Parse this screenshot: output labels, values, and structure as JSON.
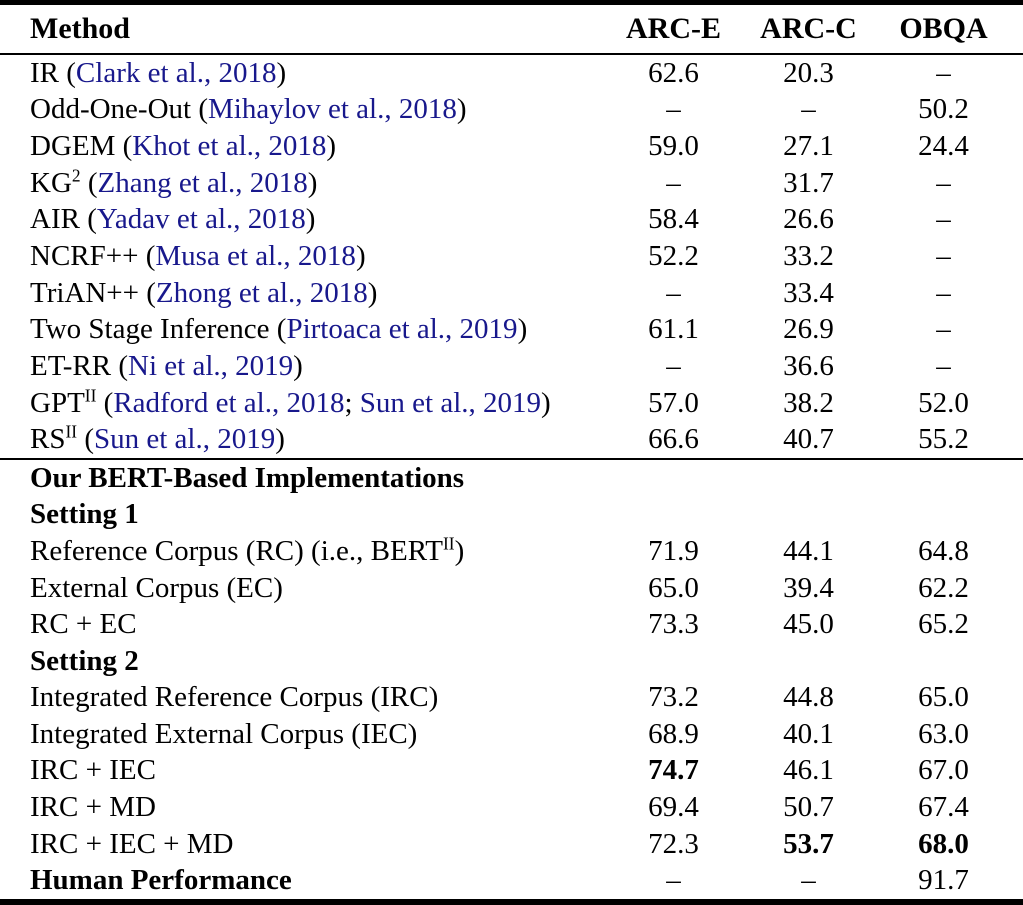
{
  "colors": {
    "background": "#FFFFFF",
    "text": "#000000",
    "rule": "#000000",
    "citation_link": "#18188C"
  },
  "table": {
    "columns": [
      "Method",
      "ARC-E",
      "ARC-C",
      "OBQA"
    ],
    "missing_value_glyph": "–",
    "sections": [
      {
        "rows": [
          {
            "method": [
              {
                "t": "IR ("
              },
              {
                "t": "Clark et al., 2018",
                "cite": true
              },
              {
                "t": ")"
              }
            ],
            "values": [
              "62.6",
              "20.3",
              "–"
            ],
            "bold": []
          },
          {
            "method": [
              {
                "t": "Odd-One-Out ("
              },
              {
                "t": "Mihaylov et al., 2018",
                "cite": true
              },
              {
                "t": ")"
              }
            ],
            "values": [
              "–",
              "–",
              "50.2"
            ],
            "bold": []
          },
          {
            "method": [
              {
                "t": "DGEM ("
              },
              {
                "t": "Khot et al., 2018",
                "cite": true
              },
              {
                "t": ")"
              }
            ],
            "values": [
              "59.0",
              "27.1",
              "24.4"
            ],
            "bold": []
          },
          {
            "method": [
              {
                "t": "KG"
              },
              {
                "t": "2",
                "sup": true
              },
              {
                "t": " ("
              },
              {
                "t": "Zhang et al., 2018",
                "cite": true
              },
              {
                "t": ")"
              }
            ],
            "values": [
              "–",
              "31.7",
              "–"
            ],
            "bold": []
          },
          {
            "method": [
              {
                "t": "AIR ("
              },
              {
                "t": "Yadav et al., 2018",
                "cite": true
              },
              {
                "t": ")"
              }
            ],
            "values": [
              "58.4",
              "26.6",
              "–"
            ],
            "bold": []
          },
          {
            "method": [
              {
                "t": "NCRF++ ("
              },
              {
                "t": "Musa et al., 2018",
                "cite": true
              },
              {
                "t": ")"
              }
            ],
            "values": [
              "52.2",
              "33.2",
              "–"
            ],
            "bold": []
          },
          {
            "method": [
              {
                "t": "TriAN++ ("
              },
              {
                "t": "Zhong et al., 2018",
                "cite": true
              },
              {
                "t": ")"
              }
            ],
            "values": [
              "–",
              "33.4",
              "–"
            ],
            "bold": []
          },
          {
            "method": [
              {
                "t": "Two Stage Inference ("
              },
              {
                "t": "Pirtoaca et al., 2019",
                "cite": true
              },
              {
                "t": ")"
              }
            ],
            "values": [
              "61.1",
              "26.9",
              "–"
            ],
            "bold": []
          },
          {
            "method": [
              {
                "t": "ET-RR ("
              },
              {
                "t": "Ni et al., 2019",
                "cite": true
              },
              {
                "t": ")"
              }
            ],
            "values": [
              "–",
              "36.6",
              "–"
            ],
            "bold": []
          },
          {
            "method": [
              {
                "t": "GPT"
              },
              {
                "t": "II",
                "sup": true
              },
              {
                "t": " ("
              },
              {
                "t": "Radford et al., 2018",
                "cite": true
              },
              {
                "t": "; "
              },
              {
                "t": "Sun et al., 2019",
                "cite": true
              },
              {
                "t": ")"
              }
            ],
            "values": [
              "57.0",
              "38.2",
              "52.0"
            ],
            "bold": []
          },
          {
            "method": [
              {
                "t": "RS"
              },
              {
                "t": "II",
                "sup": true
              },
              {
                "t": " ("
              },
              {
                "t": "Sun et al., 2019",
                "cite": true
              },
              {
                "t": ")"
              }
            ],
            "values": [
              "66.6",
              "40.7",
              "55.2"
            ],
            "bold": []
          }
        ]
      },
      {
        "rows": [
          {
            "method": [
              {
                "t": "Our BERT-Based Implementations"
              }
            ],
            "row_bold": true,
            "values": [
              "",
              "",
              ""
            ],
            "bold": []
          },
          {
            "method": [
              {
                "t": "Setting 1"
              }
            ],
            "row_bold": true,
            "values": [
              "",
              "",
              ""
            ],
            "bold": []
          },
          {
            "method": [
              {
                "t": "Reference Corpus (RC) (i.e., BERT"
              },
              {
                "t": "II",
                "sup": true
              },
              {
                "t": ")"
              }
            ],
            "values": [
              "71.9",
              "44.1",
              "64.8"
            ],
            "bold": []
          },
          {
            "method": [
              {
                "t": "External Corpus (EC)"
              }
            ],
            "values": [
              "65.0",
              "39.4",
              "62.2"
            ],
            "bold": []
          },
          {
            "method": [
              {
                "t": "RC + EC"
              }
            ],
            "values": [
              "73.3",
              "45.0",
              "65.2"
            ],
            "bold": []
          },
          {
            "method": [
              {
                "t": "Setting 2"
              }
            ],
            "row_bold": true,
            "values": [
              "",
              "",
              ""
            ],
            "bold": []
          },
          {
            "method": [
              {
                "t": "Integrated Reference Corpus (IRC)"
              }
            ],
            "values": [
              "73.2",
              "44.8",
              "65.0"
            ],
            "bold": []
          },
          {
            "method": [
              {
                "t": "Integrated External Corpus (IEC)"
              }
            ],
            "values": [
              "68.9",
              "40.1",
              "63.0"
            ],
            "bold": []
          },
          {
            "method": [
              {
                "t": "IRC + IEC"
              }
            ],
            "values": [
              "74.7",
              "46.1",
              "67.0"
            ],
            "bold": [
              0
            ]
          },
          {
            "method": [
              {
                "t": "IRC + MD"
              }
            ],
            "values": [
              "69.4",
              "50.7",
              "67.4"
            ],
            "bold": []
          },
          {
            "method": [
              {
                "t": "IRC + IEC + MD"
              }
            ],
            "values": [
              "72.3",
              "53.7",
              "68.0"
            ],
            "bold": [
              1,
              2
            ]
          },
          {
            "method": [
              {
                "t": "Human Performance"
              }
            ],
            "row_bold": true,
            "values": [
              "–",
              "–",
              "91.7"
            ],
            "bold": []
          }
        ]
      }
    ]
  }
}
